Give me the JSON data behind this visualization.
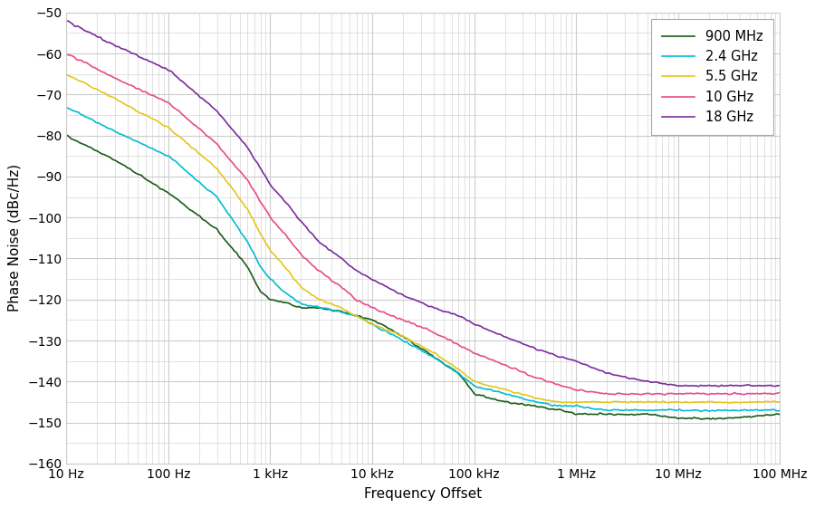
{
  "title": "",
  "xlabel": "Frequency Offset",
  "ylabel": "Phase Noise (dBc/Hz)",
  "xlim": [
    10,
    100000000.0
  ],
  "ylim": [
    -160,
    -50
  ],
  "yticks": [
    -160,
    -150,
    -140,
    -130,
    -120,
    -110,
    -100,
    -90,
    -80,
    -70,
    -60,
    -50
  ],
  "xtick_labels": [
    "10 Hz",
    "100 Hz",
    "1 kHz",
    "10 kHz",
    "100 kHz",
    "1 MHz",
    "10 MHz",
    "100 MHz"
  ],
  "xtick_positions": [
    10,
    100,
    1000,
    10000,
    100000,
    1000000,
    10000000,
    100000000
  ],
  "background_color": "#ffffff",
  "grid_color": "#cccccc",
  "series": [
    {
      "label": "900 MHz",
      "color": "#1a5c1a",
      "points": [
        [
          10,
          -80
        ],
        [
          30,
          -86
        ],
        [
          100,
          -94
        ],
        [
          300,
          -103
        ],
        [
          600,
          -112
        ],
        [
          800,
          -118
        ],
        [
          1000,
          -120
        ],
        [
          1500,
          -121
        ],
        [
          2000,
          -122
        ],
        [
          3000,
          -122
        ],
        [
          5000,
          -123
        ],
        [
          7000,
          -124
        ],
        [
          10000,
          -125
        ],
        [
          20000,
          -129
        ],
        [
          40000,
          -134
        ],
        [
          70000,
          -138
        ],
        [
          100000,
          -143
        ],
        [
          200000,
          -145
        ],
        [
          400000,
          -146
        ],
        [
          700000,
          -147
        ],
        [
          1000000,
          -148
        ],
        [
          2000000,
          -148
        ],
        [
          5000000,
          -148
        ],
        [
          10000000,
          -149
        ],
        [
          30000000,
          -149
        ],
        [
          100000000,
          -148
        ]
      ]
    },
    {
      "label": "2.4 GHz",
      "color": "#00bcd4",
      "points": [
        [
          10,
          -73
        ],
        [
          30,
          -79
        ],
        [
          100,
          -85
        ],
        [
          300,
          -95
        ],
        [
          600,
          -106
        ],
        [
          800,
          -112
        ],
        [
          1000,
          -115
        ],
        [
          1500,
          -119
        ],
        [
          2000,
          -121
        ],
        [
          3000,
          -122
        ],
        [
          5000,
          -123
        ],
        [
          7000,
          -124
        ],
        [
          10000,
          -126
        ],
        [
          20000,
          -130
        ],
        [
          40000,
          -134
        ],
        [
          70000,
          -138
        ],
        [
          100000,
          -141
        ],
        [
          200000,
          -143
        ],
        [
          400000,
          -145
        ],
        [
          700000,
          -146
        ],
        [
          1000000,
          -146
        ],
        [
          2000000,
          -147
        ],
        [
          5000000,
          -147
        ],
        [
          10000000,
          -147
        ],
        [
          30000000,
          -147
        ],
        [
          100000000,
          -147
        ]
      ]
    },
    {
      "label": "5.5 GHz",
      "color": "#e6c619",
      "points": [
        [
          10,
          -65
        ],
        [
          30,
          -71
        ],
        [
          100,
          -78
        ],
        [
          300,
          -88
        ],
        [
          600,
          -98
        ],
        [
          800,
          -104
        ],
        [
          1000,
          -108
        ],
        [
          1500,
          -113
        ],
        [
          2000,
          -117
        ],
        [
          3000,
          -120
        ],
        [
          5000,
          -122
        ],
        [
          7000,
          -124
        ],
        [
          10000,
          -126
        ],
        [
          20000,
          -129
        ],
        [
          40000,
          -133
        ],
        [
          70000,
          -137
        ],
        [
          100000,
          -140
        ],
        [
          200000,
          -142
        ],
        [
          400000,
          -144
        ],
        [
          700000,
          -145
        ],
        [
          1000000,
          -145
        ],
        [
          2000000,
          -145
        ],
        [
          5000000,
          -145
        ],
        [
          10000000,
          -145
        ],
        [
          30000000,
          -145
        ],
        [
          100000000,
          -145
        ]
      ]
    },
    {
      "label": "10 GHz",
      "color": "#e84b8a",
      "points": [
        [
          10,
          -60
        ],
        [
          30,
          -66
        ],
        [
          100,
          -72
        ],
        [
          300,
          -82
        ],
        [
          600,
          -91
        ],
        [
          800,
          -96
        ],
        [
          1000,
          -100
        ],
        [
          1500,
          -105
        ],
        [
          2000,
          -109
        ],
        [
          3000,
          -113
        ],
        [
          5000,
          -117
        ],
        [
          7000,
          -120
        ],
        [
          10000,
          -122
        ],
        [
          20000,
          -125
        ],
        [
          40000,
          -128
        ],
        [
          70000,
          -131
        ],
        [
          100000,
          -133
        ],
        [
          200000,
          -136
        ],
        [
          400000,
          -139
        ],
        [
          700000,
          -141
        ],
        [
          1000000,
          -142
        ],
        [
          2000000,
          -143
        ],
        [
          5000000,
          -143
        ],
        [
          10000000,
          -143
        ],
        [
          30000000,
          -143
        ],
        [
          100000000,
          -143
        ]
      ]
    },
    {
      "label": "18 GHz",
      "color": "#7b2d9e",
      "points": [
        [
          10,
          -52
        ],
        [
          30,
          -58
        ],
        [
          100,
          -64
        ],
        [
          300,
          -74
        ],
        [
          600,
          -83
        ],
        [
          800,
          -88
        ],
        [
          1000,
          -92
        ],
        [
          1500,
          -97
        ],
        [
          2000,
          -101
        ],
        [
          3000,
          -106
        ],
        [
          5000,
          -110
        ],
        [
          7000,
          -113
        ],
        [
          10000,
          -115
        ],
        [
          20000,
          -119
        ],
        [
          40000,
          -122
        ],
        [
          70000,
          -124
        ],
        [
          100000,
          -126
        ],
        [
          200000,
          -129
        ],
        [
          400000,
          -132
        ],
        [
          700000,
          -134
        ],
        [
          1000000,
          -135
        ],
        [
          2000000,
          -138
        ],
        [
          5000000,
          -140
        ],
        [
          10000000,
          -141
        ],
        [
          30000000,
          -141
        ],
        [
          100000000,
          -141
        ]
      ]
    }
  ]
}
